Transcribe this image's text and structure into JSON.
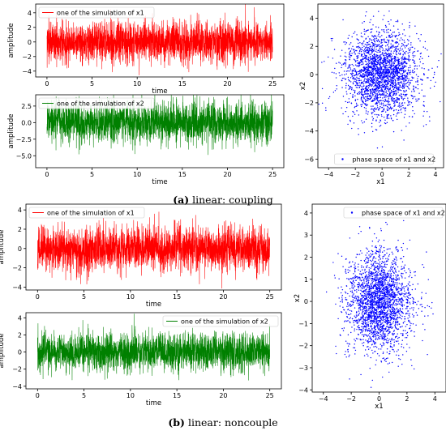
{
  "colors": {
    "red": "#ff0000",
    "green": "#008000",
    "blue": "#0000ff"
  },
  "captions": [
    {
      "label": "(a)",
      "text": " linear: coupling"
    },
    {
      "label": "(b)",
      "text": " linear: noncouple"
    }
  ],
  "chart_data": [
    {
      "id": "a-x1",
      "type": "line",
      "legend": "one of the simulation of x1",
      "legend_position": "top-left",
      "xlabel": "time",
      "ylabel": "amplitude",
      "xlim": [
        -1.25,
        26.25
      ],
      "ylim": [
        -4.8,
        5.2
      ],
      "xticks": [
        0,
        5,
        10,
        15,
        20,
        25
      ],
      "yticks": [
        -4,
        -2,
        0,
        2,
        4
      ],
      "series": [
        {
          "color": "red",
          "x_range": [
            0,
            25
          ],
          "n_points": 2500,
          "mean": 0,
          "std": 1.4
        }
      ]
    },
    {
      "id": "a-x2",
      "type": "line",
      "legend": "one of the simulation of x2",
      "legend_position": "top-left",
      "xlabel": "time",
      "ylabel": "amplitude",
      "xlim": [
        -1.25,
        26.25
      ],
      "ylim": [
        -6.8,
        4.2
      ],
      "xticks": [
        0,
        5,
        10,
        15,
        20,
        25
      ],
      "yticks": [
        -5.0,
        -2.5,
        0.0,
        2.5
      ],
      "ytick_labels": [
        "−5.0",
        "−2.5",
        "0.0",
        "2.5"
      ],
      "series": [
        {
          "color": "green",
          "x_range": [
            0,
            25
          ],
          "n_points": 2500,
          "mean": 0,
          "std": 1.5
        }
      ]
    },
    {
      "id": "a-phase",
      "type": "scatter",
      "legend": "phase space of x1 and x2",
      "legend_position": "bottom-center",
      "xlabel": "x1",
      "ylabel": "x2",
      "xlim": [
        -4.8,
        4.6
      ],
      "ylim": [
        -6.6,
        5.0
      ],
      "xticks": [
        -4,
        -2,
        0,
        2,
        4
      ],
      "yticks": [
        -6,
        -4,
        -2,
        0,
        2,
        4
      ],
      "series": [
        {
          "color": "blue",
          "n_points": 2500,
          "x_std": 1.4,
          "y_std": 1.5
        }
      ]
    },
    {
      "id": "b-x1",
      "type": "line",
      "legend": "one of the simulation of x1",
      "legend_position": "top-left",
      "xlabel": "time",
      "ylabel": "amplitude",
      "xlim": [
        -1.25,
        26.25
      ],
      "ylim": [
        -4.3,
        4.6
      ],
      "xticks": [
        0,
        5,
        10,
        15,
        20,
        25
      ],
      "yticks": [
        -4,
        -2,
        0,
        2,
        4
      ],
      "series": [
        {
          "color": "red",
          "x_range": [
            0,
            25
          ],
          "n_points": 2500,
          "mean": 0,
          "std": 1.15
        }
      ]
    },
    {
      "id": "b-x2",
      "type": "line",
      "legend": "one of the simulation of x2",
      "legend_position": "top-right",
      "xlabel": "time",
      "ylabel": "amplitude",
      "xlim": [
        -1.25,
        26.25
      ],
      "ylim": [
        -4.3,
        4.6
      ],
      "xticks": [
        0,
        5,
        10,
        15,
        20,
        25
      ],
      "yticks": [
        -4,
        -2,
        0,
        2,
        4
      ],
      "series": [
        {
          "color": "green",
          "x_range": [
            0,
            25
          ],
          "n_points": 2500,
          "mean": 0,
          "std": 1.1
        }
      ]
    },
    {
      "id": "b-phase",
      "type": "scatter",
      "legend": "phase space of x1 and x2",
      "legend_position": "top-right",
      "xlabel": "x1",
      "ylabel": "x2",
      "xlim": [
        -4.8,
        4.8
      ],
      "ylim": [
        -4.1,
        4.4
      ],
      "xticks": [
        -4,
        -2,
        0,
        2,
        4
      ],
      "yticks": [
        -4,
        -3,
        -2,
        -1,
        0,
        1,
        2,
        3,
        4
      ],
      "series": [
        {
          "color": "blue",
          "n_points": 2500,
          "x_std": 1.15,
          "y_std": 1.1
        }
      ]
    }
  ]
}
